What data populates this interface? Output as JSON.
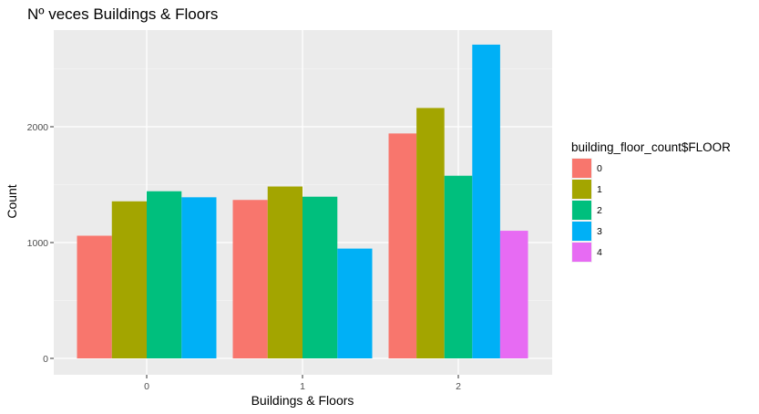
{
  "chart_data": {
    "type": "bar",
    "title": "Nº veces Buildings & Floors",
    "xlabel": "Buildings & Floors",
    "ylabel": "Count",
    "categories": [
      "0",
      "1",
      "2"
    ],
    "ylim": [
      0,
      2800
    ],
    "yticks": [
      0,
      1000,
      2000
    ],
    "ytick_labels": [
      "0",
      "1000",
      "2000"
    ],
    "grid": true,
    "legend_position": "right",
    "legend_title": "building_floor_count$FLOOR",
    "series": [
      {
        "name": "0",
        "color": "#F8766D",
        "values": [
          1059,
          1368,
          1942
        ]
      },
      {
        "name": "1",
        "color": "#A3A500",
        "values": [
          1356,
          1484,
          2162
        ]
      },
      {
        "name": "2",
        "color": "#00BF7D",
        "values": [
          1443,
          1396,
          1577
        ]
      },
      {
        "name": "3",
        "color": "#00B0F6",
        "values": [
          1391,
          948,
          2709
        ]
      },
      {
        "name": "4",
        "color": "#E76BF3",
        "values": [
          null,
          null,
          1102
        ]
      }
    ]
  }
}
